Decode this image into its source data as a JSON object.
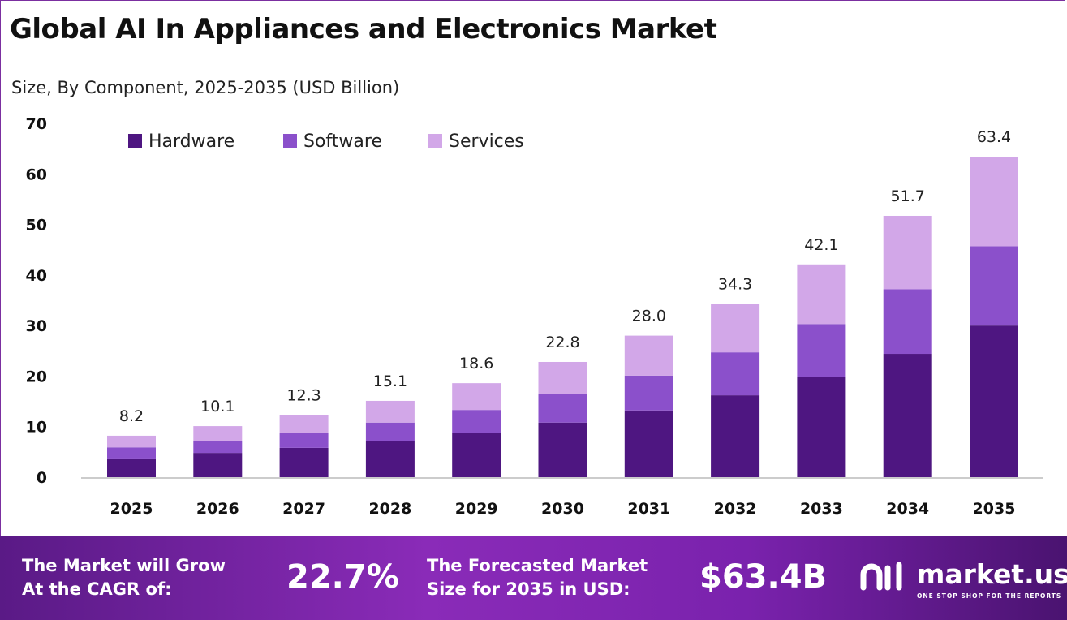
{
  "chart_data": {
    "type": "bar",
    "stacked": true,
    "title": "Global AI In Appliances and Electronics Market",
    "subtitle": "Size, By Component, 2025-2035 (USD Billion)",
    "categories": [
      "2025",
      "2026",
      "2027",
      "2028",
      "2029",
      "2030",
      "2031",
      "2032",
      "2033",
      "2034",
      "2035"
    ],
    "series": [
      {
        "name": "Hardware",
        "color": "#4e1681",
        "values": [
          3.7,
          4.8,
          5.8,
          7.2,
          8.8,
          10.8,
          13.2,
          16.2,
          19.9,
          24.4,
          30.0
        ]
      },
      {
        "name": "Software",
        "color": "#8b50cb",
        "values": [
          2.2,
          2.3,
          3.0,
          3.6,
          4.5,
          5.6,
          6.9,
          8.5,
          10.4,
          12.8,
          15.7
        ]
      },
      {
        "name": "Services",
        "color": "#d2a7e8",
        "values": [
          2.3,
          3.0,
          3.5,
          4.3,
          5.3,
          6.4,
          7.9,
          9.6,
          11.8,
          14.5,
          17.7
        ]
      }
    ],
    "totals": [
      "8.2",
      "10.1",
      "12.3",
      "15.1",
      "18.6",
      "22.8",
      "28.0",
      "34.3",
      "42.1",
      "51.7",
      "63.4"
    ],
    "yticks": [
      "0",
      "10",
      "20",
      "30",
      "40",
      "50",
      "60",
      "70"
    ],
    "ylim": [
      0,
      70
    ],
    "xlabel": "",
    "ylabel": "",
    "grid": false,
    "legend_position": "top-left"
  },
  "footer": {
    "cagr_label_1": "The Market will Grow",
    "cagr_label_2": "At the CAGR of:",
    "cagr_value": "22.7%",
    "forecast_label_1": "The Forecasted Market",
    "forecast_label_2": "Size for 2035 in USD:",
    "forecast_value": "$63.4B",
    "logo_name": "market.us",
    "logo_tagline": "ONE STOP SHOP FOR THE REPORTS"
  }
}
